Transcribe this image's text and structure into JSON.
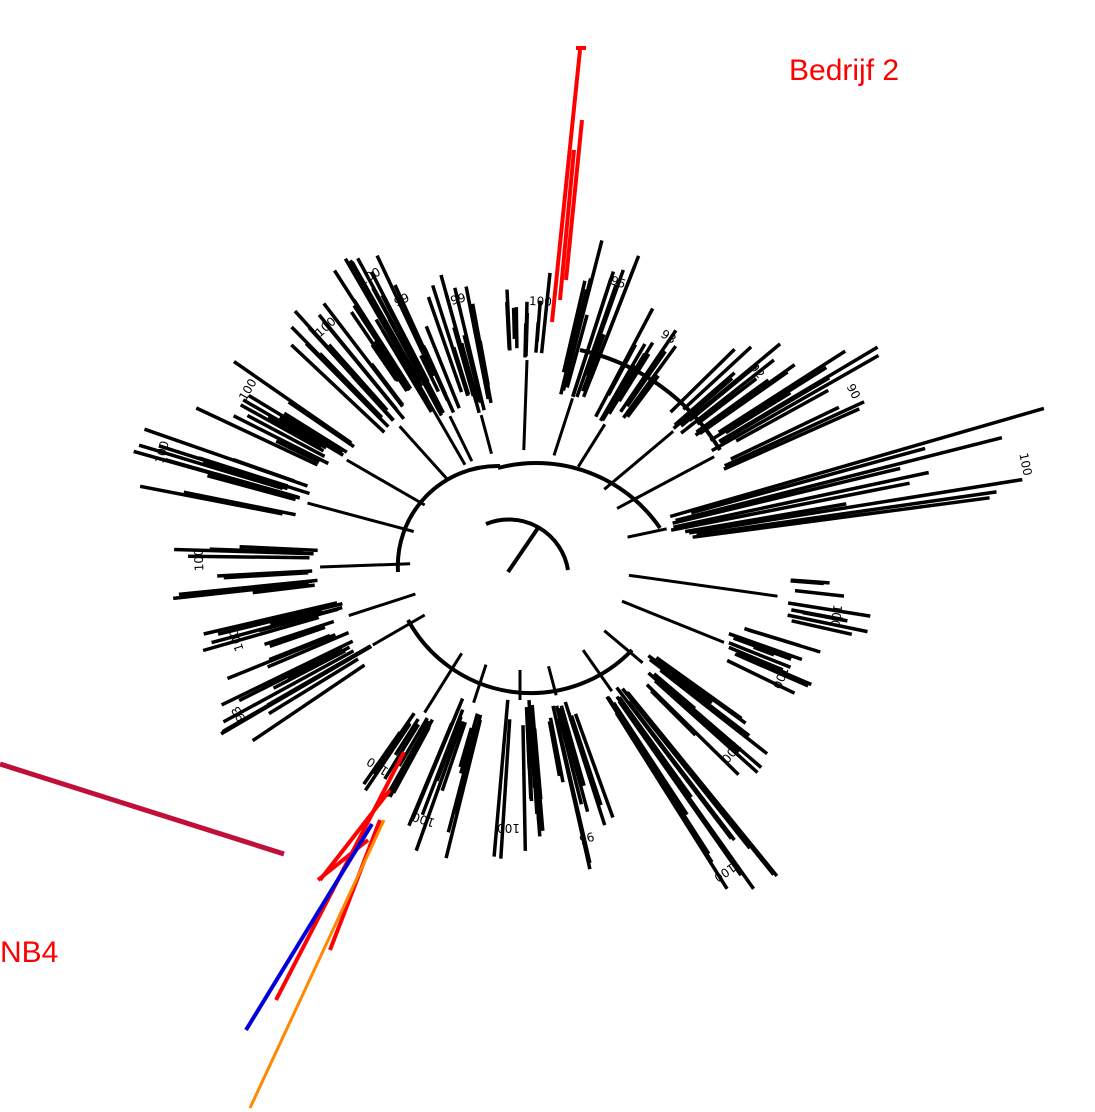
{
  "labels": {
    "farm_label": "Bedrijf 2",
    "nb4_label": "NB4"
  },
  "colors": {
    "default_branch": "#000000",
    "farm2_clade": "#ff0000",
    "nb4_clade": "#ff0000",
    "blue_clade": "#0000dd",
    "orange_clade": "#ff8800",
    "dark_red_branch": "#c0103a"
  },
  "bootstrap_values": [
    "100",
    "99",
    "100",
    "95",
    "93",
    "92",
    "90",
    "100",
    "100",
    "100",
    "100",
    "100",
    "95",
    "100",
    "100",
    "100",
    "93",
    "100",
    "100",
    "100",
    "100",
    "100",
    "99",
    "100",
    "100",
    "100",
    "99",
    "100",
    "100",
    "100",
    "100"
  ]
}
